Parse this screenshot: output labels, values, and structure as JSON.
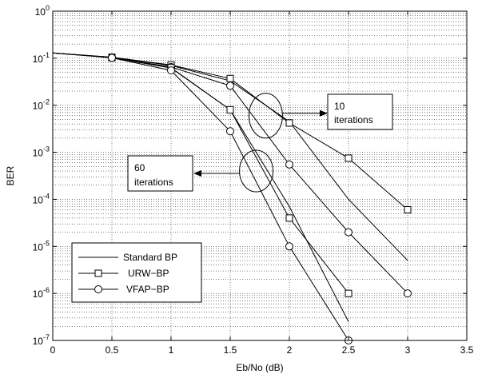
{
  "chart_data": {
    "type": "line",
    "xlabel": "Eb/No (dB)",
    "ylabel": "BER",
    "xlim": [
      0,
      3.5
    ],
    "ylim": [
      1e-07,
      1
    ],
    "yscale": "log",
    "grid": true,
    "x_ticks": [
      "0",
      "0.5",
      "1",
      "1.5",
      "2",
      "2.5",
      "3",
      "3.5"
    ],
    "y_ticks": [
      {
        "base": "10",
        "exp": "0"
      },
      {
        "base": "10",
        "exp": "-1"
      },
      {
        "base": "10",
        "exp": "-2"
      },
      {
        "base": "10",
        "exp": "-3"
      },
      {
        "base": "10",
        "exp": "-4"
      },
      {
        "base": "10",
        "exp": "-5"
      },
      {
        "base": "10",
        "exp": "-6"
      },
      {
        "base": "10",
        "exp": "-7"
      }
    ],
    "legend": {
      "position": "bottom-left",
      "entries": [
        {
          "label": "Standard BP",
          "marker": "none"
        },
        {
          "label": "URW−BP",
          "marker": "square"
        },
        {
          "label": "VFAP−BP",
          "marker": "circle"
        }
      ]
    },
    "series": [
      {
        "name": "Standard BP",
        "group": "10 iterations",
        "marker": "none",
        "x": [
          0,
          0.5,
          1,
          1.5,
          2,
          2.5,
          3
        ],
        "y": [
          0.13,
          0.105,
          0.07,
          0.033,
          0.0045,
          0.0001,
          5e-06
        ]
      },
      {
        "name": "URW−BP",
        "group": "10 iterations",
        "marker": "square",
        "x": [
          0,
          0.5,
          1,
          1.5,
          2,
          2.5,
          3
        ],
        "y": [
          0.13,
          0.105,
          0.072,
          0.037,
          0.0042,
          0.00075,
          6e-05
        ]
      },
      {
        "name": "VFAP−BP",
        "group": "10 iterations",
        "marker": "circle",
        "x": [
          0,
          0.5,
          1,
          1.5,
          2,
          2.5,
          3
        ],
        "y": [
          0.13,
          0.104,
          0.065,
          0.026,
          0.00055,
          2e-05,
          1e-06
        ]
      },
      {
        "name": "Standard BP",
        "group": "60 iterations",
        "marker": "none",
        "x": [
          0,
          0.5,
          1,
          1.5,
          2,
          2.5
        ],
        "y": [
          0.13,
          0.103,
          0.062,
          0.008,
          7e-05,
          2.5e-07
        ]
      },
      {
        "name": "URW−BP",
        "group": "60 iterations",
        "marker": "square",
        "x": [
          0,
          0.5,
          1,
          1.5,
          2,
          2.5
        ],
        "y": [
          0.13,
          0.103,
          0.063,
          0.008,
          4e-05,
          1e-06
        ]
      },
      {
        "name": "VFAP−BP",
        "group": "60 iterations",
        "marker": "circle",
        "x": [
          0,
          0.5,
          1,
          1.5,
          2,
          2.5
        ],
        "y": [
          0.13,
          0.102,
          0.055,
          0.0028,
          1e-05,
          1e-07
        ]
      }
    ],
    "annotations": [
      {
        "lines": [
          "10",
          "iterations"
        ],
        "ellipse_center": [
          1.8,
          0.006
        ],
        "points_to": "right"
      },
      {
        "lines": [
          "60",
          "iterations"
        ],
        "ellipse_center": [
          1.72,
          0.0004
        ],
        "points_to": "left"
      }
    ]
  }
}
